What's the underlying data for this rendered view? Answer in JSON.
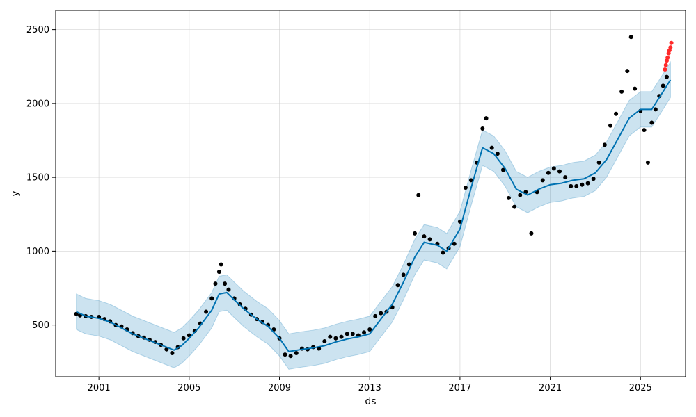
{
  "chart_data": {
    "type": "scatter",
    "title": "",
    "xlabel": "ds",
    "ylabel": "y",
    "xlim": [
      "1999-02-01",
      "2026-12-31"
    ],
    "ylim": [
      150,
      2630
    ],
    "x_ticks": [
      "2001",
      "2005",
      "2009",
      "2013",
      "2017",
      "2021",
      "2025"
    ],
    "y_ticks": [
      500,
      1000,
      1500,
      2000,
      2500
    ],
    "grid": true,
    "legend": "none",
    "colors": {
      "observed": "#000000",
      "forecast_line": "#0072B2",
      "uncertainty_band": "#0072B2",
      "recent_actuals": "#ff2a2a"
    },
    "series": [
      {
        "kind": "forecast",
        "points": [
          [
            "2000-01-01",
            590
          ],
          [
            "2000-06-01",
            560
          ],
          [
            "2001-01-01",
            545
          ],
          [
            "2001-07-01",
            520
          ],
          [
            "2002-01-01",
            480
          ],
          [
            "2002-07-01",
            440
          ],
          [
            "2003-01-01",
            410
          ],
          [
            "2003-07-01",
            380
          ],
          [
            "2004-01-01",
            350
          ],
          [
            "2004-05-01",
            330
          ],
          [
            "2004-09-01",
            360
          ],
          [
            "2005-01-01",
            410
          ],
          [
            "2005-06-01",
            480
          ],
          [
            "2006-01-01",
            600
          ],
          [
            "2006-05-01",
            710
          ],
          [
            "2006-09-01",
            720
          ],
          [
            "2007-01-01",
            670
          ],
          [
            "2007-06-01",
            610
          ],
          [
            "2008-01-01",
            540
          ],
          [
            "2008-07-01",
            490
          ],
          [
            "2009-01-01",
            410
          ],
          [
            "2009-06-01",
            320
          ],
          [
            "2010-01-01",
            335
          ],
          [
            "2010-07-01",
            345
          ],
          [
            "2011-01-01",
            360
          ],
          [
            "2011-07-01",
            385
          ],
          [
            "2012-01-01",
            405
          ],
          [
            "2012-07-01",
            420
          ],
          [
            "2013-01-01",
            440
          ],
          [
            "2013-07-01",
            540
          ],
          [
            "2014-01-01",
            640
          ],
          [
            "2014-07-01",
            790
          ],
          [
            "2015-01-01",
            960
          ],
          [
            "2015-06-01",
            1060
          ],
          [
            "2016-01-01",
            1040
          ],
          [
            "2016-06-01",
            1000
          ],
          [
            "2017-01-01",
            1150
          ],
          [
            "2017-07-01",
            1430
          ],
          [
            "2018-01-01",
            1700
          ],
          [
            "2018-07-01",
            1660
          ],
          [
            "2019-01-01",
            1560
          ],
          [
            "2019-07-01",
            1420
          ],
          [
            "2020-01-01",
            1380
          ],
          [
            "2020-07-01",
            1420
          ],
          [
            "2021-01-01",
            1450
          ],
          [
            "2021-07-01",
            1460
          ],
          [
            "2022-01-01",
            1480
          ],
          [
            "2022-07-01",
            1490
          ],
          [
            "2023-01-01",
            1530
          ],
          [
            "2023-07-01",
            1620
          ],
          [
            "2024-01-01",
            1760
          ],
          [
            "2024-07-01",
            1900
          ],
          [
            "2025-01-01",
            1960
          ],
          [
            "2025-07-01",
            1960
          ],
          [
            "2026-01-01",
            2080
          ],
          [
            "2026-05-01",
            2160
          ]
        ],
        "band_halfwidth": 120
      },
      {
        "kind": "observed",
        "points": [
          [
            "2000-01-01",
            575
          ],
          [
            "2000-03-01",
            565
          ],
          [
            "2000-06-01",
            560
          ],
          [
            "2000-09-01",
            555
          ],
          [
            "2001-01-01",
            555
          ],
          [
            "2001-04-01",
            540
          ],
          [
            "2001-07-01",
            525
          ],
          [
            "2001-10-01",
            500
          ],
          [
            "2002-01-01",
            490
          ],
          [
            "2002-04-01",
            470
          ],
          [
            "2002-07-01",
            445
          ],
          [
            "2002-10-01",
            425
          ],
          [
            "2003-01-01",
            415
          ],
          [
            "2003-04-01",
            400
          ],
          [
            "2003-07-01",
            385
          ],
          [
            "2003-10-01",
            365
          ],
          [
            "2004-01-01",
            335
          ],
          [
            "2004-04-01",
            310
          ],
          [
            "2004-07-01",
            350
          ],
          [
            "2004-10-01",
            410
          ],
          [
            "2005-01-01",
            430
          ],
          [
            "2005-04-01",
            460
          ],
          [
            "2005-07-01",
            510
          ],
          [
            "2005-10-01",
            590
          ],
          [
            "2006-01-01",
            680
          ],
          [
            "2006-03-01",
            780
          ],
          [
            "2006-05-01",
            860
          ],
          [
            "2006-06-01",
            910
          ],
          [
            "2006-08-01",
            780
          ],
          [
            "2006-10-01",
            740
          ],
          [
            "2007-01-01",
            680
          ],
          [
            "2007-04-01",
            640
          ],
          [
            "2007-07-01",
            610
          ],
          [
            "2007-10-01",
            570
          ],
          [
            "2008-01-01",
            540
          ],
          [
            "2008-04-01",
            520
          ],
          [
            "2008-07-01",
            500
          ],
          [
            "2008-10-01",
            470
          ],
          [
            "2009-01-01",
            410
          ],
          [
            "2009-04-01",
            300
          ],
          [
            "2009-07-01",
            290
          ],
          [
            "2009-10-01",
            310
          ],
          [
            "2010-01-01",
            340
          ],
          [
            "2010-04-01",
            335
          ],
          [
            "2010-07-01",
            350
          ],
          [
            "2010-10-01",
            340
          ],
          [
            "2011-01-01",
            390
          ],
          [
            "2011-04-01",
            420
          ],
          [
            "2011-07-01",
            410
          ],
          [
            "2011-10-01",
            420
          ],
          [
            "2012-01-01",
            440
          ],
          [
            "2012-04-01",
            440
          ],
          [
            "2012-07-01",
            430
          ],
          [
            "2012-10-01",
            450
          ],
          [
            "2013-01-01",
            470
          ],
          [
            "2013-04-01",
            560
          ],
          [
            "2013-07-01",
            580
          ],
          [
            "2013-10-01",
            590
          ],
          [
            "2014-01-01",
            620
          ],
          [
            "2014-04-01",
            770
          ],
          [
            "2014-07-01",
            840
          ],
          [
            "2014-10-01",
            910
          ],
          [
            "2015-01-01",
            1120
          ],
          [
            "2015-03-01",
            1380
          ],
          [
            "2015-06-01",
            1100
          ],
          [
            "2015-09-01",
            1080
          ],
          [
            "2016-01-01",
            1050
          ],
          [
            "2016-04-01",
            990
          ],
          [
            "2016-07-01",
            1020
          ],
          [
            "2016-10-01",
            1050
          ],
          [
            "2017-01-01",
            1200
          ],
          [
            "2017-04-01",
            1430
          ],
          [
            "2017-07-01",
            1480
          ],
          [
            "2017-10-01",
            1600
          ],
          [
            "2018-01-01",
            1830
          ],
          [
            "2018-03-01",
            1900
          ],
          [
            "2018-06-01",
            1700
          ],
          [
            "2018-09-01",
            1660
          ],
          [
            "2018-12-01",
            1550
          ],
          [
            "2019-03-01",
            1360
          ],
          [
            "2019-06-01",
            1300
          ],
          [
            "2019-09-01",
            1380
          ],
          [
            "2019-12-01",
            1400
          ],
          [
            "2020-03-01",
            1120
          ],
          [
            "2020-06-01",
            1400
          ],
          [
            "2020-09-01",
            1480
          ],
          [
            "2020-12-01",
            1530
          ],
          [
            "2021-03-01",
            1560
          ],
          [
            "2021-06-01",
            1540
          ],
          [
            "2021-09-01",
            1500
          ],
          [
            "2021-12-01",
            1440
          ],
          [
            "2022-03-01",
            1440
          ],
          [
            "2022-06-01",
            1450
          ],
          [
            "2022-09-01",
            1460
          ],
          [
            "2022-12-01",
            1490
          ],
          [
            "2023-03-01",
            1600
          ],
          [
            "2023-06-01",
            1720
          ],
          [
            "2023-09-01",
            1850
          ],
          [
            "2023-12-01",
            1930
          ],
          [
            "2024-03-01",
            2080
          ],
          [
            "2024-06-01",
            2220
          ],
          [
            "2024-08-01",
            2450
          ],
          [
            "2024-10-01",
            2100
          ],
          [
            "2025-01-01",
            1950
          ],
          [
            "2025-03-01",
            1820
          ],
          [
            "2025-05-01",
            1600
          ],
          [
            "2025-07-01",
            1870
          ],
          [
            "2025-09-01",
            1960
          ],
          [
            "2025-11-01",
            2050
          ],
          [
            "2026-01-01",
            2120
          ],
          [
            "2026-03-01",
            2180
          ]
        ]
      },
      {
        "kind": "recent_actuals",
        "points": [
          [
            "2026-02-01",
            2230
          ],
          [
            "2026-02-15",
            2260
          ],
          [
            "2026-03-01",
            2290
          ],
          [
            "2026-03-15",
            2310
          ],
          [
            "2026-04-01",
            2340
          ],
          [
            "2026-04-15",
            2360
          ],
          [
            "2026-05-01",
            2380
          ],
          [
            "2026-05-15",
            2410
          ]
        ]
      }
    ]
  }
}
